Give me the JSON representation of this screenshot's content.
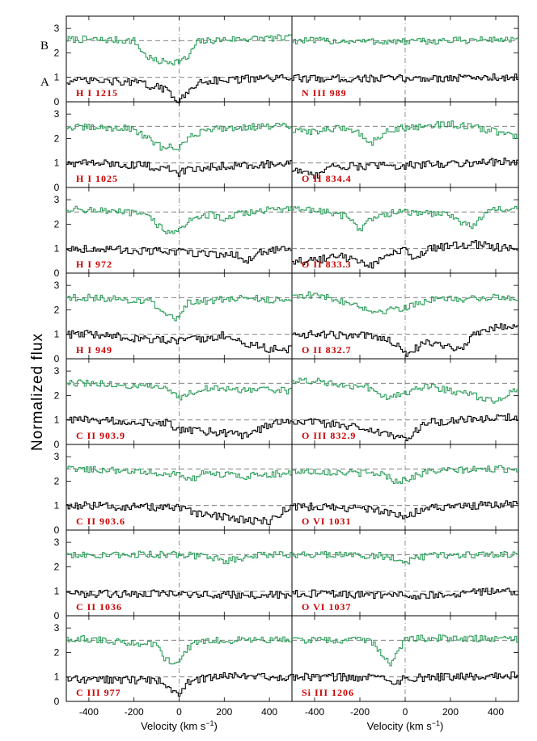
{
  "chart_data": {
    "type": "line",
    "grid": false,
    "ylabel": "Normalized flux",
    "xlabel": "Velocity (km s",
    "xlabel_sup": "−1",
    "xlabel_close": ")",
    "xlim": [
      -500,
      500
    ],
    "ylim": [
      0,
      3.5
    ],
    "x_ticks": [
      -400,
      -200,
      0,
      200,
      400
    ],
    "x_tick_labels": [
      "-400",
      "-200",
      "0",
      "200",
      "400"
    ],
    "y_ticks": [
      0,
      1,
      2,
      3
    ],
    "y_tick_labels": [
      "0",
      "1",
      "2",
      "3"
    ],
    "continuum_levels": [
      1,
      2.5
    ],
    "series_labels": {
      "B": "B",
      "A": "A"
    },
    "series_colors": {
      "A": "#000000",
      "B": "#2e9e5b"
    },
    "panels": [
      {
        "label": "H I 1215",
        "col": 0,
        "row": 0,
        "A": [
          [
            -400,
            0.85
          ],
          [
            -200,
            0.8
          ],
          [
            -120,
            0.65
          ],
          [
            -60,
            0.5
          ],
          [
            -20,
            0.2
          ],
          [
            0,
            0.08
          ],
          [
            20,
            0.15
          ],
          [
            60,
            0.6
          ],
          [
            100,
            0.85
          ],
          [
            200,
            0.9
          ],
          [
            400,
            0.95
          ]
        ],
        "B": [
          [
            -400,
            2.55
          ],
          [
            -200,
            2.5
          ],
          [
            -150,
            1.9
          ],
          [
            -100,
            1.65
          ],
          [
            0,
            1.65
          ],
          [
            40,
            1.8
          ],
          [
            80,
            2.45
          ],
          [
            200,
            2.55
          ],
          [
            400,
            2.6
          ]
        ]
      },
      {
        "label": "N III 989",
        "col": 1,
        "row": 0,
        "A": [
          [
            -400,
            0.95
          ],
          [
            0,
            0.95
          ],
          [
            400,
            1.0
          ]
        ],
        "B": [
          [
            -400,
            2.5
          ],
          [
            0,
            2.45
          ],
          [
            400,
            2.55
          ]
        ]
      },
      {
        "label": "H I 1025",
        "col": 0,
        "row": 1,
        "A": [
          [
            -400,
            1.0
          ],
          [
            -150,
            0.9
          ],
          [
            -50,
            0.75
          ],
          [
            0,
            0.6
          ],
          [
            50,
            0.75
          ],
          [
            200,
            0.9
          ],
          [
            400,
            0.95
          ]
        ],
        "B": [
          [
            -400,
            2.45
          ],
          [
            -200,
            2.4
          ],
          [
            -140,
            2.0
          ],
          [
            -80,
            1.65
          ],
          [
            0,
            1.65
          ],
          [
            60,
            2.1
          ],
          [
            120,
            2.4
          ],
          [
            400,
            2.5
          ]
        ]
      },
      {
        "label": "O II 834.4",
        "col": 1,
        "row": 1,
        "A": [
          [
            -450,
            0.7
          ],
          [
            -400,
            0.4
          ],
          [
            -350,
            0.85
          ],
          [
            0,
            0.9
          ],
          [
            400,
            1.05
          ]
        ],
        "B": [
          [
            -400,
            2.3
          ],
          [
            -250,
            2.45
          ],
          [
            -200,
            2.2
          ],
          [
            -150,
            1.8
          ],
          [
            -100,
            2.2
          ],
          [
            -50,
            2.4
          ],
          [
            200,
            2.6
          ],
          [
            400,
            2.3
          ],
          [
            480,
            2.1
          ]
        ]
      },
      {
        "label": "H I 972",
        "col": 0,
        "row": 2,
        "A": [
          [
            -400,
            1.0
          ],
          [
            0,
            0.85
          ],
          [
            250,
            0.75
          ],
          [
            300,
            0.5
          ],
          [
            350,
            0.8
          ],
          [
            400,
            0.95
          ]
        ],
        "B": [
          [
            -400,
            2.6
          ],
          [
            -150,
            2.4
          ],
          [
            -100,
            2.0
          ],
          [
            -40,
            1.65
          ],
          [
            0,
            1.7
          ],
          [
            60,
            2.3
          ],
          [
            150,
            2.4
          ],
          [
            200,
            2.1
          ],
          [
            250,
            2.4
          ],
          [
            400,
            2.6
          ]
        ]
      },
      {
        "label": "O II 833.3",
        "col": 1,
        "row": 2,
        "A": [
          [
            -400,
            0.5
          ],
          [
            -300,
            0.7
          ],
          [
            -200,
            0.5
          ],
          [
            -150,
            0.3
          ],
          [
            -80,
            0.8
          ],
          [
            0,
            0.9
          ],
          [
            50,
            0.5
          ],
          [
            100,
            1.0
          ],
          [
            300,
            1.2
          ],
          [
            400,
            1.05
          ]
        ],
        "B": [
          [
            -400,
            2.6
          ],
          [
            -250,
            2.3
          ],
          [
            -200,
            1.8
          ],
          [
            -150,
            2.2
          ],
          [
            -50,
            2.5
          ],
          [
            200,
            2.4
          ],
          [
            250,
            2.1
          ],
          [
            300,
            1.9
          ],
          [
            350,
            2.4
          ],
          [
            400,
            2.6
          ]
        ]
      },
      {
        "label": "H I 949",
        "col": 0,
        "row": 3,
        "A": [
          [
            -400,
            1.0
          ],
          [
            0,
            0.7
          ],
          [
            200,
            0.95
          ],
          [
            300,
            0.6
          ],
          [
            400,
            0.4
          ]
        ],
        "B": [
          [
            -400,
            2.5
          ],
          [
            -120,
            2.35
          ],
          [
            -60,
            1.7
          ],
          [
            0,
            1.6
          ],
          [
            40,
            2.3
          ],
          [
            300,
            2.5
          ],
          [
            400,
            2.4
          ]
        ]
      },
      {
        "label": "O II 832.7",
        "col": 1,
        "row": 3,
        "A": [
          [
            -400,
            1.0
          ],
          [
            -100,
            0.9
          ],
          [
            -30,
            0.6
          ],
          [
            0,
            0.2
          ],
          [
            100,
            0.7
          ],
          [
            250,
            0.4
          ],
          [
            300,
            1.0
          ],
          [
            400,
            1.3
          ]
        ],
        "B": [
          [
            -400,
            2.6
          ],
          [
            -200,
            2.2
          ],
          [
            -150,
            1.9
          ],
          [
            0,
            2.1
          ],
          [
            100,
            2.4
          ],
          [
            400,
            2.5
          ]
        ]
      },
      {
        "label": "C II 903.9",
        "col": 0,
        "row": 4,
        "A": [
          [
            -400,
            1.0
          ],
          [
            -50,
            0.9
          ],
          [
            0,
            0.6
          ],
          [
            100,
            0.55
          ],
          [
            200,
            0.45
          ],
          [
            300,
            0.35
          ],
          [
            400,
            0.8
          ],
          [
            480,
            1.0
          ]
        ],
        "B": [
          [
            -400,
            2.5
          ],
          [
            -50,
            2.3
          ],
          [
            0,
            1.9
          ],
          [
            100,
            2.3
          ],
          [
            400,
            2.2
          ]
        ]
      },
      {
        "label": "O III 832.9",
        "col": 1,
        "row": 4,
        "A": [
          [
            -400,
            0.9
          ],
          [
            -200,
            0.7
          ],
          [
            -100,
            0.4
          ],
          [
            0,
            0.2
          ],
          [
            100,
            0.9
          ],
          [
            300,
            1.0
          ],
          [
            400,
            1.1
          ]
        ],
        "B": [
          [
            -400,
            2.6
          ],
          [
            -150,
            2.3
          ],
          [
            -80,
            1.9
          ],
          [
            0,
            2.1
          ],
          [
            100,
            2.4
          ],
          [
            400,
            1.8
          ],
          [
            480,
            2.2
          ]
        ]
      },
      {
        "label": "C II 903.6",
        "col": 0,
        "row": 5,
        "A": [
          [
            -400,
            1.0
          ],
          [
            0,
            0.9
          ],
          [
            100,
            0.6
          ],
          [
            200,
            0.55
          ],
          [
            300,
            0.4
          ],
          [
            400,
            0.35
          ],
          [
            480,
            0.9
          ]
        ],
        "B": [
          [
            -400,
            2.5
          ],
          [
            0,
            2.3
          ],
          [
            50,
            2.0
          ],
          [
            100,
            2.3
          ],
          [
            300,
            2.2
          ],
          [
            400,
            2.3
          ]
        ]
      },
      {
        "label": "O VI 1031",
        "col": 1,
        "row": 5,
        "A": [
          [
            -400,
            0.95
          ],
          [
            -150,
            0.85
          ],
          [
            -50,
            0.7
          ],
          [
            0,
            0.55
          ],
          [
            100,
            0.9
          ],
          [
            400,
            1.05
          ]
        ],
        "B": [
          [
            -400,
            2.4
          ],
          [
            -100,
            2.3
          ],
          [
            -40,
            2.0
          ],
          [
            0,
            2.05
          ],
          [
            100,
            2.4
          ],
          [
            400,
            2.5
          ]
        ]
      },
      {
        "label": "C II 1036",
        "col": 0,
        "row": 6,
        "A": [
          [
            -400,
            0.9
          ],
          [
            0,
            0.9
          ],
          [
            400,
            0.85
          ]
        ],
        "B": [
          [
            -400,
            2.5
          ],
          [
            0,
            2.5
          ],
          [
            150,
            2.4
          ],
          [
            200,
            2.2
          ],
          [
            300,
            2.4
          ],
          [
            400,
            2.5
          ]
        ]
      },
      {
        "label": "O VI 1037",
        "col": 1,
        "row": 6,
        "A": [
          [
            -400,
            0.9
          ],
          [
            -50,
            0.85
          ],
          [
            0,
            0.8
          ],
          [
            400,
            1.0
          ]
        ],
        "B": [
          [
            -400,
            2.5
          ],
          [
            -100,
            2.45
          ],
          [
            0,
            2.2
          ],
          [
            100,
            2.45
          ],
          [
            400,
            2.5
          ]
        ]
      },
      {
        "label": "C III 977",
        "col": 0,
        "row": 7,
        "A": [
          [
            -400,
            0.9
          ],
          [
            -100,
            0.85
          ],
          [
            -40,
            0.6
          ],
          [
            0,
            0.2
          ],
          [
            40,
            0.8
          ],
          [
            200,
            1.1
          ],
          [
            400,
            1.0
          ]
        ],
        "B": [
          [
            -400,
            2.55
          ],
          [
            -100,
            2.3
          ],
          [
            -60,
            1.7
          ],
          [
            0,
            1.6
          ],
          [
            40,
            2.2
          ],
          [
            100,
            2.5
          ],
          [
            400,
            2.5
          ]
        ]
      },
      {
        "label": "Si III 1206",
        "col": 1,
        "row": 7,
        "A": [
          [
            -400,
            1.0
          ],
          [
            -100,
            0.95
          ],
          [
            -30,
            0.8
          ],
          [
            0,
            0.95
          ],
          [
            400,
            1.05
          ]
        ],
        "B": [
          [
            -400,
            2.5
          ],
          [
            -150,
            2.5
          ],
          [
            -100,
            1.9
          ],
          [
            -60,
            1.55
          ],
          [
            -20,
            2.2
          ],
          [
            0,
            2.6
          ],
          [
            400,
            2.55
          ]
        ]
      }
    ]
  }
}
